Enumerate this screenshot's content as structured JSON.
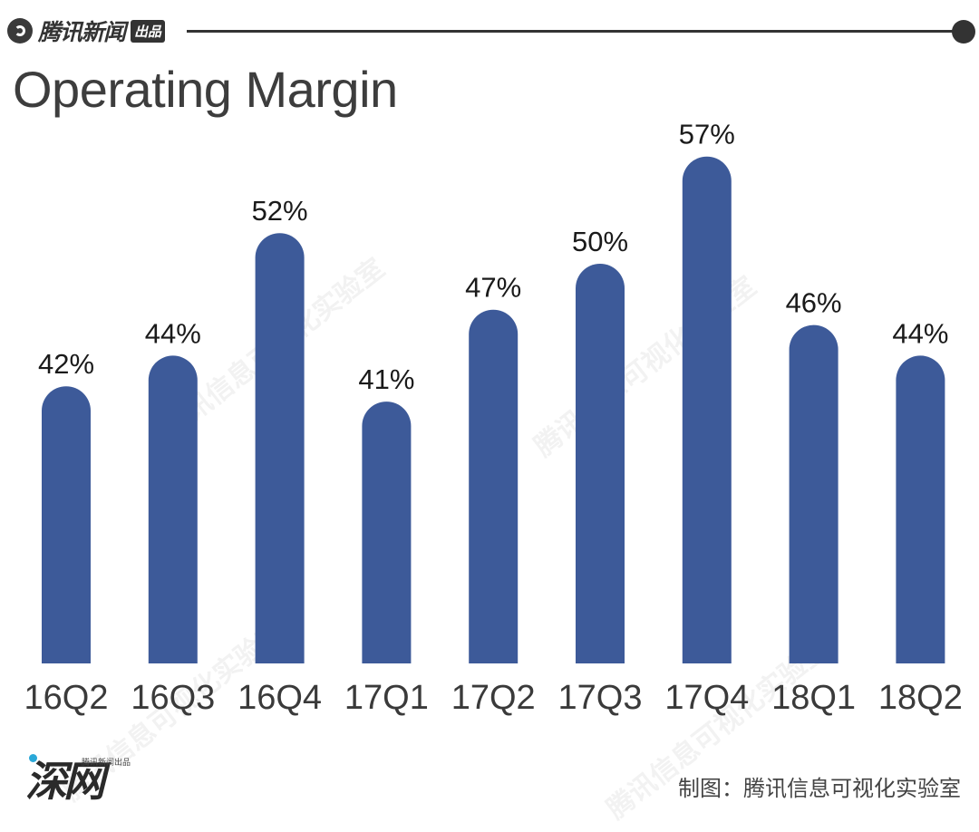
{
  "header": {
    "brand_logo_icon": "tencent-news-logo-icon",
    "brand_name": "腾讯新闻",
    "brand_tag": "出品"
  },
  "chart_data": {
    "type": "bar",
    "title": "Operating Margin",
    "categories": [
      "16Q2",
      "16Q3",
      "16Q4",
      "17Q1",
      "17Q2",
      "17Q3",
      "17Q4",
      "18Q1",
      "18Q2"
    ],
    "values": [
      42,
      44,
      52,
      41,
      47,
      50,
      57,
      46,
      44
    ],
    "value_labels": [
      "42%",
      "44%",
      "52%",
      "41%",
      "47%",
      "50%",
      "57%",
      "46%",
      "44%"
    ],
    "unit": "%",
    "bar_color": "#3d5a99",
    "grid": false,
    "legend": "none"
  },
  "footer": {
    "logo_text": "深网",
    "logo_small_text": "腾讯新闻出品",
    "credit": "制图：腾讯信息可视化实验室"
  },
  "watermark": {
    "text": "腾讯信息可视化实验室"
  }
}
